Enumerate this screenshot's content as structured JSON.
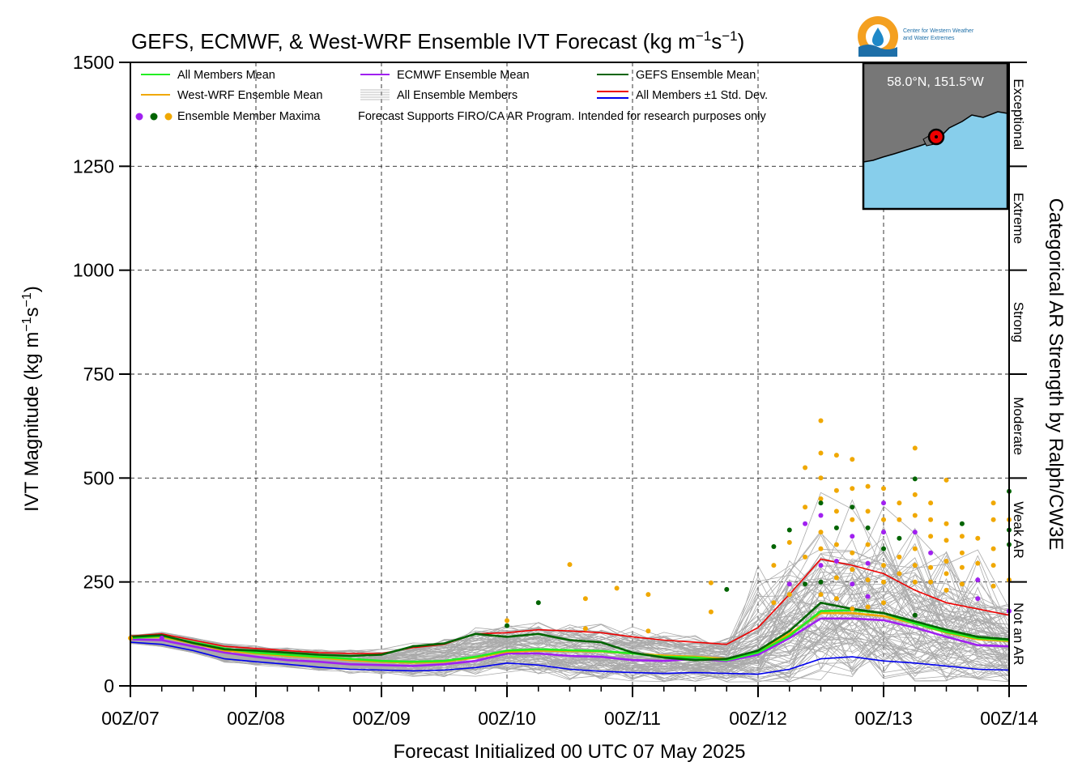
{
  "chart_data": {
    "type": "line",
    "title": "GEFS, ECMWF, & West-WRF Ensemble IVT Forecast (kg m",
    "title_exp1": "−1",
    "title_s": "s",
    "title_exp2": "−1",
    "title_end": ")",
    "ylabel": "IVT Magnitude (kg m",
    "ylabel_exp1": "−1",
    "ylabel_s": "s",
    "ylabel_exp2": "−1",
    "ylabel_end": ")",
    "xlabel": "Forecast Initialized 00 UTC 07 May 2025",
    "right_label": "Categorical AR Strength by Ralph/CW3E",
    "ylim": [
      0,
      1500
    ],
    "xlim_hours": [
      0,
      168
    ],
    "grid": true,
    "legend_position": "top-left",
    "yticks": [
      "0",
      "250",
      "500",
      "750",
      "1000",
      "1250",
      "1500"
    ],
    "xticks": [
      "00Z/07",
      "00Z/08",
      "00Z/09",
      "00Z/10",
      "00Z/11",
      "00Z/12",
      "00Z/13",
      "00Z/14"
    ],
    "categories_ar": [
      "Not an AR",
      "Weak AR",
      "Moderate",
      "Strong",
      "Extreme",
      "Exceptional"
    ],
    "category_bounds": [
      0,
      250,
      500,
      750,
      1000,
      1250,
      1500
    ],
    "legend": {
      "all_mean": "All Members Mean",
      "wrf_mean": "West-WRF Ensemble Mean",
      "maxima": "Ensemble Member Maxima",
      "ecmwf_mean": "ECMWF Ensemble Mean",
      "all_members": "All Ensemble Members",
      "gefs_mean": "GEFS Ensemble Mean",
      "std": "All Members ±1 Std. Dev."
    },
    "note": "Forecast Supports FIRO/CA AR Program. Intended for research purposes only",
    "inset_location": "58.0°N, 151.5°W",
    "logo_text_1": "Center for Western Weather",
    "logo_text_2": "and Water Extremes",
    "hours": [
      0,
      6,
      12,
      18,
      24,
      30,
      36,
      42,
      48,
      54,
      60,
      66,
      72,
      78,
      84,
      90,
      96,
      102,
      108,
      114,
      120,
      126,
      132,
      138,
      144,
      150,
      156,
      162,
      168
    ],
    "series": [
      {
        "name": "All Members Mean",
        "color": "#22ee22",
        "values": [
          115,
          120,
          105,
          90,
          80,
          75,
          70,
          65,
          60,
          58,
          60,
          70,
          85,
          88,
          86,
          84,
          78,
          70,
          68,
          62,
          80,
          120,
          180,
          182,
          175,
          150,
          130,
          115,
          110
        ]
      },
      {
        "name": "West-WRF Ensemble Mean",
        "color": "#f0a800",
        "values": [
          116,
          118,
          102,
          85,
          78,
          72,
          68,
          62,
          58,
          56,
          58,
          68,
          82,
          85,
          84,
          83,
          78,
          73,
          70,
          65,
          82,
          125,
          175,
          175,
          168,
          150,
          128,
          112,
          108
        ]
      },
      {
        "name": "ECMWF Ensemble Mean",
        "color": "#a020f0",
        "values": [
          112,
          110,
          95,
          80,
          70,
          62,
          58,
          52,
          50,
          48,
          52,
          60,
          78,
          78,
          72,
          70,
          62,
          60,
          65,
          60,
          75,
          115,
          162,
          162,
          158,
          140,
          118,
          98,
          95
        ]
      },
      {
        "name": "GEFS Ensemble Mean",
        "color": "#006400",
        "values": [
          118,
          122,
          103,
          88,
          85,
          80,
          75,
          72,
          75,
          95,
          102,
          125,
          118,
          125,
          110,
          105,
          80,
          68,
          62,
          65,
          85,
          132,
          200,
          185,
          175,
          155,
          135,
          118,
          112
        ]
      },
      {
        "name": "All Members ±1 Std. Dev. (upper)",
        "color": "#ee0000",
        "values": [
          120,
          125,
          110,
          95,
          90,
          85,
          80,
          78,
          78,
          92,
          100,
          125,
          128,
          135,
          132,
          128,
          118,
          110,
          105,
          100,
          140,
          220,
          305,
          290,
          270,
          230,
          200,
          185,
          170
        ]
      },
      {
        "name": "All Members ±1 Std. Dev. (lower)",
        "color": "#0000ee",
        "values": [
          105,
          100,
          85,
          65,
          58,
          52,
          45,
          40,
          38,
          36,
          38,
          44,
          55,
          50,
          40,
          35,
          32,
          30,
          32,
          30,
          28,
          40,
          65,
          70,
          60,
          55,
          48,
          40,
          38
        ]
      }
    ],
    "maxima": [
      {
        "h": 0,
        "v": 115,
        "c": "#f0a800"
      },
      {
        "h": 6,
        "v": 115,
        "c": "#a020f0"
      },
      {
        "h": 72,
        "v": 157,
        "c": "#f0a800"
      },
      {
        "h": 72,
        "v": 145,
        "c": "#006400"
      },
      {
        "h": 78,
        "v": 200,
        "c": "#006400"
      },
      {
        "h": 84,
        "v": 292,
        "c": "#f0a800"
      },
      {
        "h": 87,
        "v": 210,
        "c": "#f0a800"
      },
      {
        "h": 87,
        "v": 138,
        "c": "#f0a800"
      },
      {
        "h": 93,
        "v": 235,
        "c": "#f0a800"
      },
      {
        "h": 99,
        "v": 220,
        "c": "#f0a800"
      },
      {
        "h": 99,
        "v": 132,
        "c": "#f0a800"
      },
      {
        "h": 111,
        "v": 248,
        "c": "#f0a800"
      },
      {
        "h": 111,
        "v": 178,
        "c": "#f0a800"
      },
      {
        "h": 114,
        "v": 232,
        "c": "#006400"
      },
      {
        "h": 123,
        "v": 335,
        "c": "#006400"
      },
      {
        "h": 123,
        "v": 290,
        "c": "#f0a800"
      },
      {
        "h": 123,
        "v": 200,
        "c": "#f0a800"
      },
      {
        "h": 126,
        "v": 375,
        "c": "#006400"
      },
      {
        "h": 126,
        "v": 345,
        "c": "#f0a800"
      },
      {
        "h": 126,
        "v": 245,
        "c": "#a020f0"
      },
      {
        "h": 126,
        "v": 220,
        "c": "#f0a800"
      },
      {
        "h": 129,
        "v": 525,
        "c": "#f0a800"
      },
      {
        "h": 129,
        "v": 430,
        "c": "#f0a800"
      },
      {
        "h": 129,
        "v": 390,
        "c": "#a020f0"
      },
      {
        "h": 129,
        "v": 310,
        "c": "#f0a800"
      },
      {
        "h": 129,
        "v": 245,
        "c": "#006400"
      },
      {
        "h": 132,
        "v": 638,
        "c": "#f0a800"
      },
      {
        "h": 132,
        "v": 560,
        "c": "#f0a800"
      },
      {
        "h": 132,
        "v": 500,
        "c": "#f0a800"
      },
      {
        "h": 132,
        "v": 450,
        "c": "#f0a800"
      },
      {
        "h": 132,
        "v": 440,
        "c": "#006400"
      },
      {
        "h": 132,
        "v": 410,
        "c": "#a020f0"
      },
      {
        "h": 132,
        "v": 370,
        "c": "#f0a800"
      },
      {
        "h": 132,
        "v": 330,
        "c": "#f0a800"
      },
      {
        "h": 132,
        "v": 290,
        "c": "#a020f0"
      },
      {
        "h": 132,
        "v": 250,
        "c": "#006400"
      },
      {
        "h": 132,
        "v": 220,
        "c": "#f0a800"
      },
      {
        "h": 135,
        "v": 555,
        "c": "#f0a800"
      },
      {
        "h": 135,
        "v": 470,
        "c": "#f0a800"
      },
      {
        "h": 135,
        "v": 420,
        "c": "#f0a800"
      },
      {
        "h": 135,
        "v": 380,
        "c": "#006400"
      },
      {
        "h": 135,
        "v": 340,
        "c": "#f0a800"
      },
      {
        "h": 135,
        "v": 300,
        "c": "#a020f0"
      },
      {
        "h": 135,
        "v": 260,
        "c": "#f0a800"
      },
      {
        "h": 135,
        "v": 210,
        "c": "#f0a800"
      },
      {
        "h": 138,
        "v": 545,
        "c": "#f0a800"
      },
      {
        "h": 138,
        "v": 475,
        "c": "#f0a800"
      },
      {
        "h": 138,
        "v": 430,
        "c": "#006400"
      },
      {
        "h": 138,
        "v": 400,
        "c": "#f0a800"
      },
      {
        "h": 138,
        "v": 360,
        "c": "#a020f0"
      },
      {
        "h": 138,
        "v": 320,
        "c": "#f0a800"
      },
      {
        "h": 138,
        "v": 280,
        "c": "#f0a800"
      },
      {
        "h": 138,
        "v": 245,
        "c": "#a020f0"
      },
      {
        "h": 138,
        "v": 185,
        "c": "#f0a800"
      },
      {
        "h": 141,
        "v": 480,
        "c": "#f0a800"
      },
      {
        "h": 141,
        "v": 420,
        "c": "#f0a800"
      },
      {
        "h": 141,
        "v": 380,
        "c": "#006400"
      },
      {
        "h": 141,
        "v": 340,
        "c": "#f0a800"
      },
      {
        "h": 141,
        "v": 295,
        "c": "#a020f0"
      },
      {
        "h": 141,
        "v": 255,
        "c": "#f0a800"
      },
      {
        "h": 141,
        "v": 215,
        "c": "#a020f0"
      },
      {
        "h": 141,
        "v": 190,
        "c": "#f0a800"
      },
      {
        "h": 144,
        "v": 475,
        "c": "#f0a800"
      },
      {
        "h": 144,
        "v": 440,
        "c": "#a020f0"
      },
      {
        "h": 144,
        "v": 400,
        "c": "#f0a800"
      },
      {
        "h": 144,
        "v": 370,
        "c": "#a020f0"
      },
      {
        "h": 144,
        "v": 330,
        "c": "#006400"
      },
      {
        "h": 144,
        "v": 290,
        "c": "#f0a800"
      },
      {
        "h": 144,
        "v": 250,
        "c": "#f0a800"
      },
      {
        "h": 144,
        "v": 200,
        "c": "#f0a800"
      },
      {
        "h": 147,
        "v": 440,
        "c": "#f0a800"
      },
      {
        "h": 147,
        "v": 400,
        "c": "#f0a800"
      },
      {
        "h": 147,
        "v": 355,
        "c": "#006400"
      },
      {
        "h": 147,
        "v": 310,
        "c": "#f0a800"
      },
      {
        "h": 147,
        "v": 270,
        "c": "#f0a800"
      },
      {
        "h": 150,
        "v": 572,
        "c": "#f0a800"
      },
      {
        "h": 150,
        "v": 498,
        "c": "#006400"
      },
      {
        "h": 150,
        "v": 460,
        "c": "#f0a800"
      },
      {
        "h": 150,
        "v": 410,
        "c": "#f0a800"
      },
      {
        "h": 150,
        "v": 370,
        "c": "#a020f0"
      },
      {
        "h": 150,
        "v": 330,
        "c": "#f0a800"
      },
      {
        "h": 150,
        "v": 290,
        "c": "#f0a800"
      },
      {
        "h": 150,
        "v": 250,
        "c": "#f0a800"
      },
      {
        "h": 150,
        "v": 170,
        "c": "#006400"
      },
      {
        "h": 153,
        "v": 440,
        "c": "#f0a800"
      },
      {
        "h": 153,
        "v": 400,
        "c": "#f0a800"
      },
      {
        "h": 153,
        "v": 360,
        "c": "#f0a800"
      },
      {
        "h": 153,
        "v": 320,
        "c": "#a020f0"
      },
      {
        "h": 153,
        "v": 285,
        "c": "#f0a800"
      },
      {
        "h": 153,
        "v": 250,
        "c": "#f0a800"
      },
      {
        "h": 156,
        "v": 495,
        "c": "#f0a800"
      },
      {
        "h": 156,
        "v": 390,
        "c": "#f0a800"
      },
      {
        "h": 156,
        "v": 350,
        "c": "#f0a800"
      },
      {
        "h": 156,
        "v": 300,
        "c": "#f0a800"
      },
      {
        "h": 156,
        "v": 270,
        "c": "#f0a800"
      },
      {
        "h": 156,
        "v": 230,
        "c": "#f0a800"
      },
      {
        "h": 159,
        "v": 390,
        "c": "#006400"
      },
      {
        "h": 159,
        "v": 360,
        "c": "#f0a800"
      },
      {
        "h": 159,
        "v": 320,
        "c": "#f0a800"
      },
      {
        "h": 159,
        "v": 285,
        "c": "#f0a800"
      },
      {
        "h": 159,
        "v": 245,
        "c": "#f0a800"
      },
      {
        "h": 162,
        "v": 355,
        "c": "#f0a800"
      },
      {
        "h": 162,
        "v": 295,
        "c": "#f0a800"
      },
      {
        "h": 162,
        "v": 255,
        "c": "#a020f0"
      },
      {
        "h": 162,
        "v": 210,
        "c": "#a020f0"
      },
      {
        "h": 165,
        "v": 440,
        "c": "#f0a800"
      },
      {
        "h": 165,
        "v": 400,
        "c": "#f0a800"
      },
      {
        "h": 165,
        "v": 330,
        "c": "#f0a800"
      },
      {
        "h": 165,
        "v": 290,
        "c": "#f0a800"
      },
      {
        "h": 165,
        "v": 240,
        "c": "#f0a800"
      },
      {
        "h": 168,
        "v": 468,
        "c": "#006400"
      },
      {
        "h": 168,
        "v": 400,
        "c": "#f0a800"
      },
      {
        "h": 168,
        "v": 375,
        "c": "#006400"
      },
      {
        "h": 168,
        "v": 340,
        "c": "#006400"
      },
      {
        "h": 168,
        "v": 255,
        "c": "#f0a800"
      },
      {
        "h": 168,
        "v": 180,
        "c": "#a020f0"
      }
    ]
  }
}
